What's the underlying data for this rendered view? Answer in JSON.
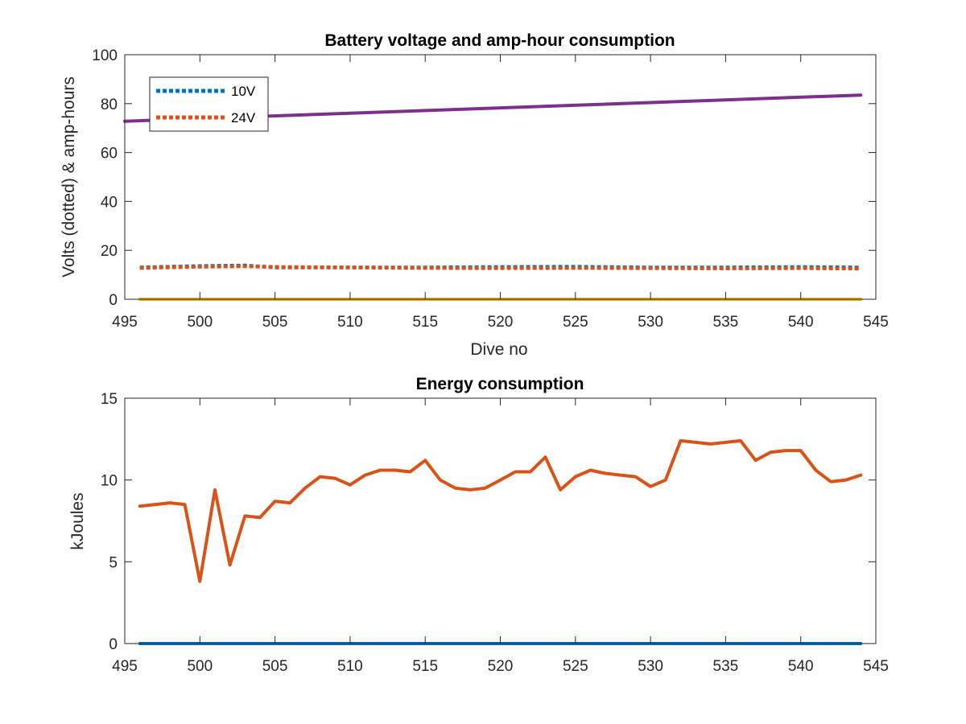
{
  "chart_data": [
    {
      "type": "line",
      "title": "Battery voltage and amp-hour consumption",
      "xlabel": "Dive no",
      "ylabel": "Volts (dotted) & amp-hours",
      "xlim": [
        495,
        545
      ],
      "ylim": [
        0,
        100
      ],
      "xticks": [
        495,
        500,
        505,
        510,
        515,
        520,
        525,
        530,
        535,
        540,
        545
      ],
      "yticks": [
        0,
        20,
        40,
        60,
        80,
        100
      ],
      "grid": false,
      "legend": {
        "placement": "top-left",
        "entries": [
          "10V",
          "24V"
        ]
      },
      "series": [
        {
          "name": "10V",
          "style": "dotted",
          "color": "#0072BD",
          "x": [
            496,
            500,
            503,
            505,
            510,
            515,
            520,
            525,
            530,
            535,
            540,
            544
          ],
          "y": [
            13,
            13.6,
            13.8,
            13,
            13,
            13,
            13.2,
            13.3,
            13,
            13,
            13.2,
            13
          ]
        },
        {
          "name": "24V",
          "style": "dotted",
          "color": "#D95319",
          "x": [
            496,
            500,
            503,
            505,
            510,
            515,
            520,
            525,
            530,
            535,
            540,
            544
          ],
          "y": [
            12.8,
            13.3,
            13.5,
            13.2,
            13,
            12.8,
            12.7,
            12.8,
            12.7,
            12.6,
            12.7,
            12.5
          ]
        },
        {
          "style": "solid",
          "color": "#EDB120",
          "x": [
            496,
            544
          ],
          "y": [
            0,
            0
          ]
        },
        {
          "style": "solid",
          "color": "#7E2F8E",
          "x": [
            495,
            544
          ],
          "y": [
            72.8,
            83.5
          ]
        }
      ]
    },
    {
      "type": "line",
      "title": "Energy consumption",
      "xlabel": "",
      "ylabel": "kJoules",
      "xlim": [
        495,
        545
      ],
      "ylim": [
        0,
        15
      ],
      "xticks": [
        495,
        500,
        505,
        510,
        515,
        520,
        525,
        530,
        535,
        540,
        545
      ],
      "yticks": [
        0,
        5,
        10,
        15
      ],
      "grid": false,
      "series": [
        {
          "style": "solid",
          "color": "#0072BD",
          "x": [
            496,
            544
          ],
          "y": [
            0,
            0
          ]
        },
        {
          "style": "solid",
          "color": "#D95319",
          "x": [
            496,
            497,
            498,
            499,
            500,
            501,
            502,
            503,
            504,
            505,
            506,
            507,
            508,
            509,
            510,
            511,
            512,
            513,
            514,
            515,
            516,
            517,
            518,
            519,
            520,
            521,
            522,
            523,
            524,
            525,
            526,
            527,
            528,
            529,
            530,
            531,
            532,
            533,
            534,
            535,
            536,
            537,
            538,
            539,
            540,
            541,
            542,
            543,
            544
          ],
          "y": [
            8.4,
            8.5,
            8.6,
            8.5,
            3.8,
            9.4,
            4.8,
            7.8,
            7.7,
            8.7,
            8.6,
            9.5,
            10.2,
            10.1,
            9.7,
            10.3,
            10.6,
            10.6,
            10.5,
            11.2,
            10.0,
            9.5,
            9.4,
            9.5,
            10.0,
            10.5,
            10.5,
            11.4,
            9.4,
            10.2,
            10.6,
            10.4,
            10.3,
            10.2,
            9.6,
            10.0,
            12.4,
            12.3,
            12.2,
            12.3,
            12.4,
            11.2,
            11.7,
            11.8,
            11.8,
            10.6,
            9.9,
            10.0,
            10.3
          ]
        }
      ]
    }
  ]
}
